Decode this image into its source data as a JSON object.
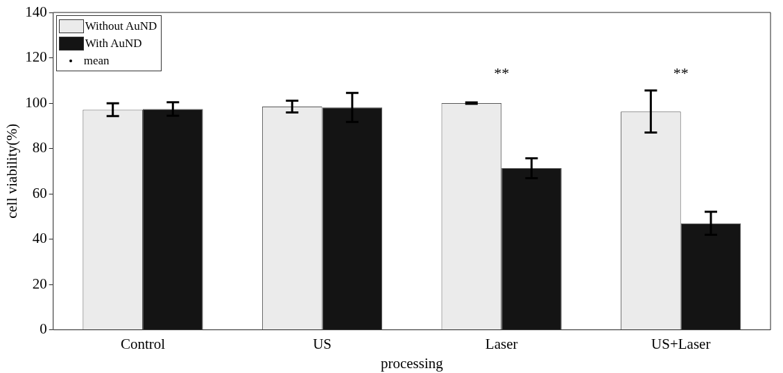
{
  "chart_data": {
    "type": "bar",
    "xlabel": "processing",
    "ylabel": "cell viability(%)",
    "categories": [
      "Control",
      "US",
      "Laser",
      "US+Laser"
    ],
    "series": [
      {
        "name": "Without AuND",
        "color": "#ebebeb",
        "values": [
          97.1,
          98.5,
          100.0,
          96.3
        ],
        "errors": [
          2.8,
          2.6,
          0.3,
          9.3
        ]
      },
      {
        "name": "With AuND",
        "color": "#141414",
        "values": [
          97.4,
          98.1,
          71.3,
          47.0
        ],
        "errors": [
          3.0,
          6.4,
          4.4,
          5.1
        ]
      },
      {
        "name": "mean",
        "type": "scatter",
        "marker": "circle",
        "color": "#000000",
        "values": [
          null,
          null,
          null,
          null
        ]
      }
    ],
    "ylim": [
      0,
      140
    ],
    "yticks": [
      0,
      20,
      40,
      60,
      80,
      100,
      120,
      140
    ],
    "annotations": [
      "**",
      "**"
    ],
    "grid": false,
    "legend": "top left"
  }
}
